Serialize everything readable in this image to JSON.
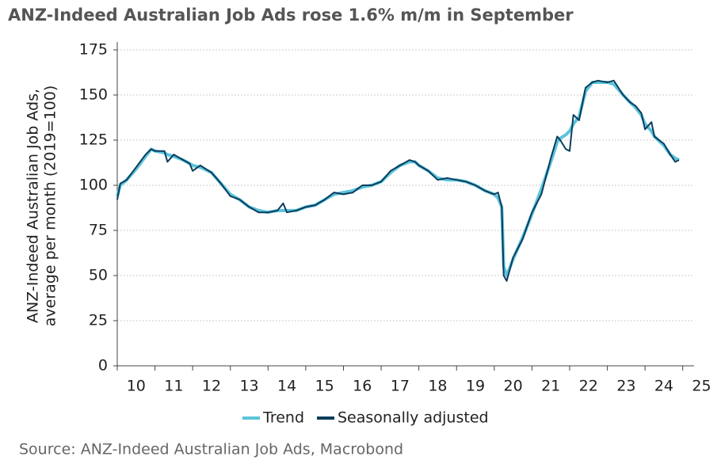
{
  "chart_data": {
    "type": "line",
    "title": "ANZ-Indeed Australian Job Ads rose 1.6% m/m in September",
    "ylabel": [
      "ANZ-Indeed Australian Job Ads,",
      "average per month (2019=100)"
    ],
    "source": "Source: ANZ-Indeed Australian Job Ads, Macrobond",
    "x": [
      10.0,
      10.08,
      10.25,
      10.5,
      10.75,
      10.9,
      11.0,
      11.25,
      11.33,
      11.5,
      11.75,
      11.92,
      12.0,
      12.2,
      12.5,
      12.75,
      13.0,
      13.25,
      13.5,
      13.75,
      14.0,
      14.25,
      14.4,
      14.5,
      14.75,
      15.0,
      15.25,
      15.5,
      15.75,
      16.0,
      16.25,
      16.5,
      16.75,
      17.0,
      17.25,
      17.5,
      17.75,
      17.9,
      18.0,
      18.25,
      18.5,
      18.75,
      19.0,
      19.25,
      19.5,
      19.75,
      20.0,
      20.1,
      20.2,
      20.25,
      20.33,
      20.5,
      20.75,
      21.0,
      21.25,
      21.5,
      21.67,
      21.75,
      21.9,
      22.0,
      22.1,
      22.25,
      22.42,
      22.6,
      22.75,
      23.0,
      23.17,
      23.42,
      23.6,
      23.75,
      23.9,
      24.0,
      24.17,
      24.25,
      24.5,
      24.67,
      24.8,
      24.9
    ],
    "series": [
      {
        "name": "Trend",
        "color": "#5bc4dc",
        "width": 4,
        "values": [
          94,
          100,
          103,
          109,
          116,
          120,
          119,
          118,
          117,
          116,
          114,
          112,
          111,
          110,
          107,
          101,
          95,
          92,
          88,
          86,
          85,
          86,
          86,
          86,
          86,
          88,
          89,
          92,
          95,
          96,
          97,
          99,
          100,
          102,
          107,
          111,
          113,
          113,
          111,
          108,
          104,
          103,
          103,
          102,
          100,
          97,
          95,
          93,
          88,
          55,
          50,
          59,
          71,
          84,
          98,
          113,
          124,
          126,
          128,
          130,
          134,
          138,
          152,
          157,
          157,
          157,
          156,
          150,
          146,
          143,
          139,
          134,
          130,
          127,
          122,
          117,
          115,
          114
        ]
      },
      {
        "name": "Seasonally adjusted",
        "color": "#0b3d5c",
        "width": 2,
        "values": [
          92,
          101,
          103,
          110,
          117,
          120,
          119,
          119,
          113,
          117,
          114,
          112,
          108,
          111,
          107,
          101,
          94,
          92,
          88,
          85,
          85,
          86,
          90,
          85,
          86,
          88,
          89,
          92,
          96,
          95,
          96,
          100,
          100,
          102,
          108,
          111,
          114,
          113,
          111,
          108,
          103,
          104,
          103,
          102,
          100,
          97,
          95,
          96,
          88,
          50,
          47,
          60,
          70,
          85,
          95,
          115,
          127,
          125,
          120,
          119,
          139,
          136,
          154,
          157,
          158,
          157,
          158,
          150,
          146,
          144,
          140,
          131,
          135,
          127,
          123,
          117,
          113,
          114
        ]
      }
    ],
    "xlim": [
      10,
      25.3
    ],
    "xticks": [
      10,
      11,
      12,
      13,
      14,
      15,
      16,
      17,
      18,
      19,
      20,
      21,
      22,
      23,
      24,
      25
    ],
    "ylim": [
      0,
      175
    ],
    "yticks": [
      0,
      25,
      50,
      75,
      100,
      125,
      150,
      175
    ],
    "grid": true
  }
}
